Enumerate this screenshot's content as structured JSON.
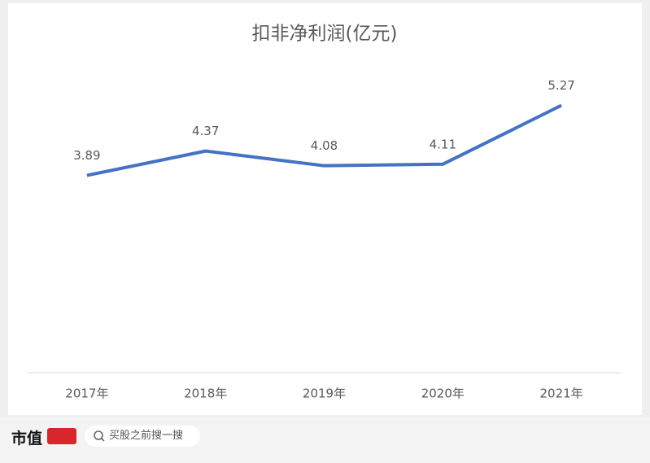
{
  "chart_data": {
    "type": "line",
    "title": "扣非净利润(亿元)",
    "categories": [
      "2017年",
      "2018年",
      "2019年",
      "2020年",
      "2021年"
    ],
    "series": [
      {
        "name": "扣非净利润",
        "color": "#4472c4",
        "values": [
          3.89,
          4.37,
          4.08,
          4.11,
          5.27
        ]
      }
    ],
    "ylim": [
      0,
      6
    ]
  },
  "footer": {
    "brand": "市值",
    "search_placeholder": "买股之前搜一搜"
  }
}
